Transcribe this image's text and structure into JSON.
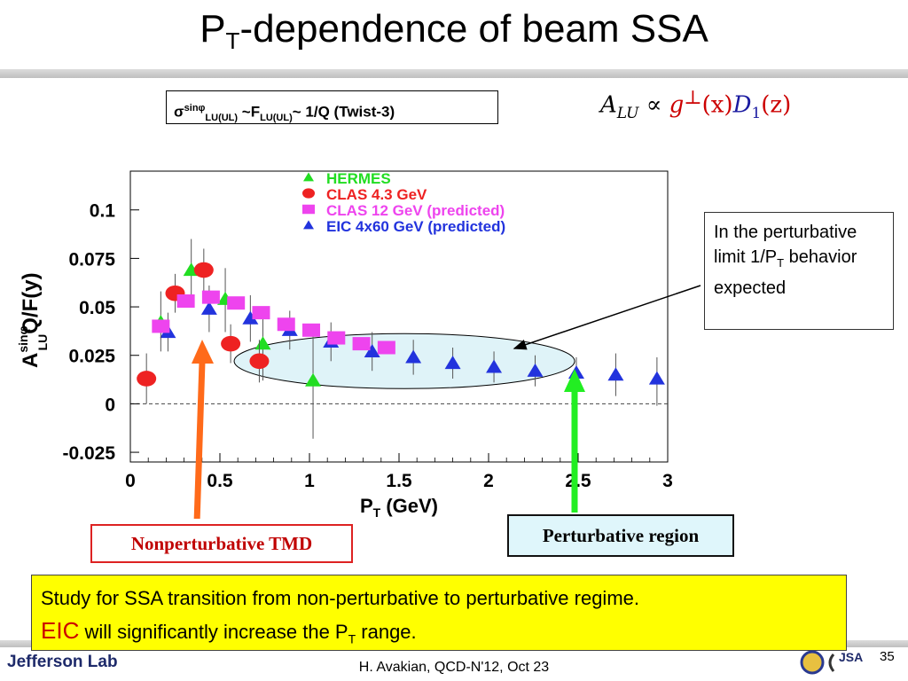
{
  "slide": {
    "title_main": "P",
    "title_sub": "T",
    "title_rest": "-dependence of beam SSA"
  },
  "formula_box": {
    "sigma": "σ",
    "sigma_sup": "sinφ",
    "sigma_sub": "LU(UL)",
    "mid": " ~F",
    "f_sub": "LU(UL)",
    "tail": "~ 1/Q (Twist-3)"
  },
  "alu_formula": {
    "a": "A",
    "a_sub": "LU",
    "prop": " ∝ ",
    "g": "g",
    "g_sup": "⊥",
    "g_arg": "(x)",
    "d": "D",
    "d_sub": "1",
    "d_arg": "(z)"
  },
  "callout": {
    "line1": "In the perturbative limit 1/P",
    "sub": "T",
    "line2": " behavior expected"
  },
  "labels": {
    "nonpert": "Nonperturbative TMD",
    "pert": "Perturbative region"
  },
  "summary": {
    "line1": "Study for SSA transition from non-perturbative to perturbative regime.",
    "eic": "EIC",
    "line2a": " will significantly increase the P",
    "line2_sub": "T",
    "line2b": " range."
  },
  "footer": {
    "logo": "Jefferson Lab",
    "text": "H. Avakian, QCD-N'12,  Oct 23",
    "page": "35",
    "jsa": "JSA"
  },
  "colors": {
    "hermes": "#22dd22",
    "clas43": "#ee2222",
    "clas12": "#ee44ee",
    "eic": "#2233dd",
    "nonpert_arrow": "#ff6a1a",
    "pert_arrow": "#22ee22",
    "ellipse_fill": "#dff3f8"
  },
  "chart_data": {
    "type": "scatter",
    "xlabel": "P_T (GeV)",
    "xlabel_main": "P",
    "xlabel_sub": "T",
    "xlabel_rest": " (GeV)",
    "ylabel": "A_LU^sinφ Q/F(y)",
    "ylabel_a": "A",
    "ylabel_sup": "sinφ",
    "ylabel_sub": "LU",
    "ylabel_rest": "Q/F(y)",
    "xlim": [
      0,
      3
    ],
    "ylim": [
      -0.03,
      0.12
    ],
    "x_ticks": [
      0,
      0.5,
      1,
      1.5,
      2,
      2.5,
      3
    ],
    "x_tick_labels": [
      "0",
      "0.5",
      "1",
      "1.5",
      "2",
      "2.5",
      "3"
    ],
    "y_ticks": [
      -0.025,
      0,
      0.025,
      0.05,
      0.075,
      0.1
    ],
    "y_tick_labels": [
      "-0.025",
      "0",
      "0.025",
      "0.05",
      "0.075",
      "0.1"
    ],
    "grid": false,
    "zero_line": "dashed",
    "legend_position": "top",
    "series": [
      {
        "name": "HERMES",
        "marker": "triangle",
        "color": "#22dd22",
        "points": [
          {
            "x": 0.17,
            "y": 0.042,
            "lo": 0.027,
            "hi": 0.058
          },
          {
            "x": 0.34,
            "y": 0.069,
            "lo": 0.054,
            "hi": 0.085
          },
          {
            "x": 0.53,
            "y": 0.054,
            "lo": 0.037,
            "hi": 0.07
          },
          {
            "x": 0.74,
            "y": 0.031,
            "lo": 0.012,
            "hi": 0.05
          },
          {
            "x": 1.02,
            "y": 0.012,
            "lo": -0.018,
            "hi": 0.04
          }
        ]
      },
      {
        "name": "CLAS 4.3 GeV",
        "marker": "circle",
        "color": "#ee2222",
        "points": [
          {
            "x": 0.09,
            "y": 0.013,
            "lo": 0.0,
            "hi": 0.026
          },
          {
            "x": 0.25,
            "y": 0.057,
            "lo": 0.047,
            "hi": 0.067
          },
          {
            "x": 0.41,
            "y": 0.069,
            "lo": 0.058,
            "hi": 0.08
          },
          {
            "x": 0.56,
            "y": 0.031,
            "lo": 0.021,
            "hi": 0.041
          },
          {
            "x": 0.72,
            "y": 0.022,
            "lo": 0.011,
            "hi": 0.033
          }
        ]
      },
      {
        "name": "CLAS 12 GeV (predicted)",
        "marker": "square",
        "color": "#ee44ee",
        "points": [
          {
            "x": 0.17,
            "y": 0.04
          },
          {
            "x": 0.31,
            "y": 0.053
          },
          {
            "x": 0.45,
            "y": 0.055
          },
          {
            "x": 0.59,
            "y": 0.052
          },
          {
            "x": 0.73,
            "y": 0.047
          },
          {
            "x": 0.87,
            "y": 0.041
          },
          {
            "x": 1.01,
            "y": 0.038
          },
          {
            "x": 1.15,
            "y": 0.034
          },
          {
            "x": 1.29,
            "y": 0.031
          },
          {
            "x": 1.43,
            "y": 0.029
          }
        ]
      },
      {
        "name": "EIC 4x60 GeV (predicted)",
        "marker": "triangle",
        "color": "#2233dd",
        "points": [
          {
            "x": 0.21,
            "y": 0.037,
            "lo": 0.027,
            "hi": 0.047
          },
          {
            "x": 0.44,
            "y": 0.049,
            "lo": 0.037,
            "hi": 0.061
          },
          {
            "x": 0.67,
            "y": 0.044,
            "lo": 0.032,
            "hi": 0.056
          },
          {
            "x": 0.89,
            "y": 0.038,
            "lo": 0.028,
            "hi": 0.048
          },
          {
            "x": 1.12,
            "y": 0.032,
            "lo": 0.022,
            "hi": 0.042
          },
          {
            "x": 1.35,
            "y": 0.027,
            "lo": 0.017,
            "hi": 0.037
          },
          {
            "x": 1.58,
            "y": 0.024,
            "lo": 0.015,
            "hi": 0.033
          },
          {
            "x": 1.8,
            "y": 0.021,
            "lo": 0.013,
            "hi": 0.029
          },
          {
            "x": 2.03,
            "y": 0.019,
            "lo": 0.011,
            "hi": 0.027
          },
          {
            "x": 2.26,
            "y": 0.017,
            "lo": 0.009,
            "hi": 0.025
          },
          {
            "x": 2.49,
            "y": 0.016,
            "lo": 0.008,
            "hi": 0.024
          },
          {
            "x": 2.71,
            "y": 0.015,
            "lo": 0.004,
            "hi": 0.026
          },
          {
            "x": 2.94,
            "y": 0.013,
            "lo": -0.001,
            "hi": 0.024
          }
        ]
      }
    ]
  }
}
